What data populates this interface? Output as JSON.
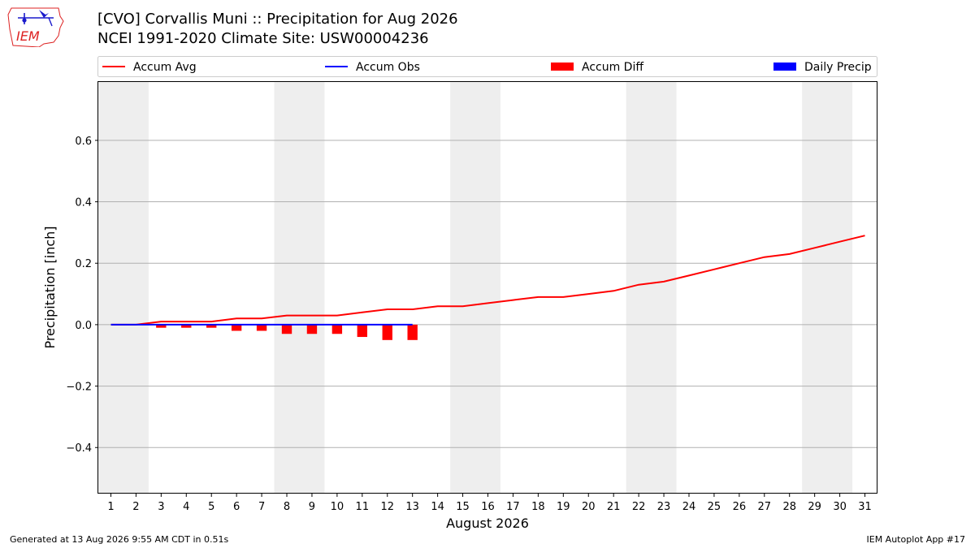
{
  "header": {
    "title_line1": "[CVO] Corvallis Muni :: Precipitation for Aug 2026",
    "title_line2": "NCEI 1991-2020 Climate Site: USW00004236"
  },
  "logo": {
    "text": "IEM",
    "icon": "iem-iowa-logo-icon"
  },
  "footer": {
    "generated": "Generated at 13 Aug 2026 9:55 AM CDT in 0.51s",
    "app": "IEM Autoplot App #17"
  },
  "chart_data": {
    "type": "line",
    "xlabel": "August 2026",
    "ylabel": "Precipitation [inch]",
    "xlim": [
      0.5,
      31.5
    ],
    "ylim": [
      -0.55,
      0.79
    ],
    "yticks": [
      -0.4,
      -0.2,
      0.0,
      0.2,
      0.4,
      0.6
    ],
    "ytick_labels": [
      "−0.4",
      "−0.2",
      "0.0",
      "0.2",
      "0.4",
      "0.6"
    ],
    "x": [
      1,
      2,
      3,
      4,
      5,
      6,
      7,
      8,
      9,
      10,
      11,
      12,
      13,
      14,
      15,
      16,
      17,
      18,
      19,
      20,
      21,
      22,
      23,
      24,
      25,
      26,
      27,
      28,
      29,
      30,
      31
    ],
    "xtick_labels": [
      "1",
      "2",
      "3",
      "4",
      "5",
      "6",
      "7",
      "8",
      "9",
      "10",
      "11",
      "12",
      "13",
      "14",
      "15",
      "16",
      "17",
      "18",
      "19",
      "20",
      "21",
      "22",
      "23",
      "24",
      "25",
      "26",
      "27",
      "28",
      "29",
      "30",
      "31"
    ],
    "grid": "y",
    "legend_position": "top",
    "weekend_shading": [
      [
        0.5,
        2.5
      ],
      [
        7.5,
        9.5
      ],
      [
        14.5,
        16.5
      ],
      [
        21.5,
        23.5
      ],
      [
        28.5,
        30.5
      ]
    ],
    "series": [
      {
        "name": "Accum Avg",
        "kind": "line",
        "color": "#ff0000",
        "values": [
          0.0,
          0.0,
          0.01,
          0.01,
          0.01,
          0.02,
          0.02,
          0.03,
          0.03,
          0.03,
          0.04,
          0.05,
          0.05,
          0.06,
          0.06,
          0.07,
          0.08,
          0.09,
          0.09,
          0.1,
          0.11,
          0.13,
          0.14,
          0.16,
          0.18,
          0.2,
          0.22,
          0.23,
          0.25,
          0.27,
          0.29
        ]
      },
      {
        "name": "Accum Obs",
        "kind": "line",
        "color": "#0000ff",
        "x": [
          1,
          2,
          3,
          4,
          5,
          6,
          7,
          8,
          9,
          10,
          11,
          12,
          13
        ],
        "values": [
          0,
          0,
          0,
          0,
          0,
          0,
          0,
          0,
          0,
          0,
          0,
          0,
          0
        ]
      },
      {
        "name": "Accum Diff",
        "kind": "bar",
        "color": "#ff0000",
        "x": [
          1,
          2,
          3,
          4,
          5,
          6,
          7,
          8,
          9,
          10,
          11,
          12,
          13
        ],
        "values": [
          0.0,
          0.0,
          -0.01,
          -0.01,
          -0.01,
          -0.02,
          -0.02,
          -0.03,
          -0.03,
          -0.03,
          -0.04,
          -0.05,
          -0.05
        ]
      },
      {
        "name": "Daily Precip",
        "kind": "bar",
        "color": "#0000ff",
        "x": [
          1,
          2,
          3,
          4,
          5,
          6,
          7,
          8,
          9,
          10,
          11,
          12,
          13
        ],
        "values": [
          0,
          0,
          0,
          0,
          0,
          0,
          0,
          0,
          0,
          0,
          0,
          0,
          0
        ]
      }
    ]
  }
}
